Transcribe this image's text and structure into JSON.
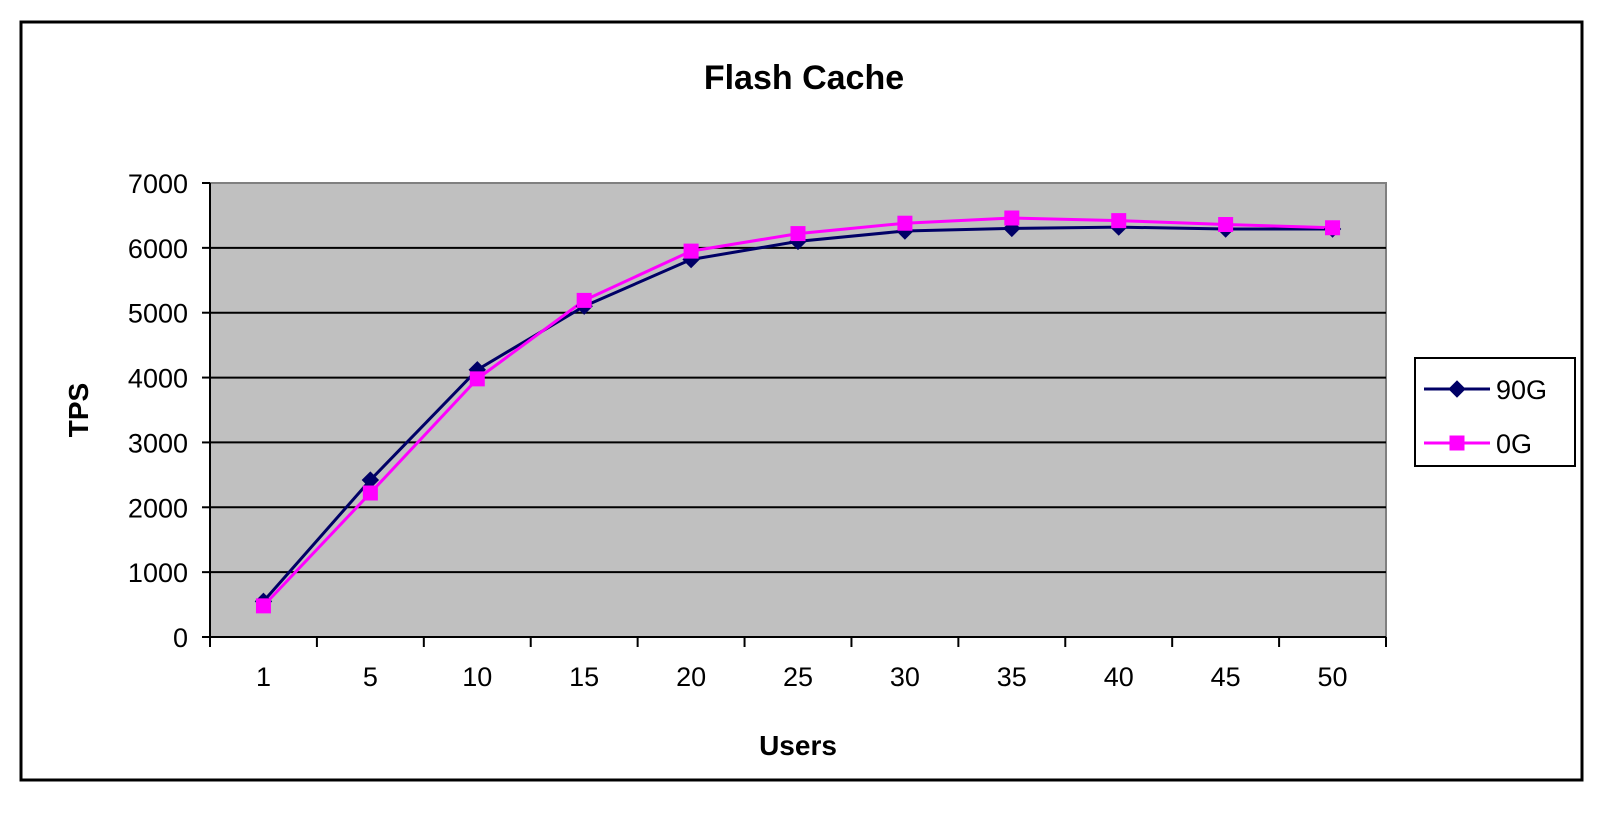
{
  "chart_data": {
    "type": "line",
    "title": "Flash Cache",
    "xlabel": "Users",
    "ylabel": "TPS",
    "categories": [
      "1",
      "5",
      "10",
      "15",
      "20",
      "25",
      "30",
      "35",
      "40",
      "45",
      "50"
    ],
    "ylim": [
      0,
      7000
    ],
    "yticks": [
      0,
      1000,
      2000,
      3000,
      4000,
      5000,
      6000,
      7000
    ],
    "grid": true,
    "legend_position": "right",
    "plot_background": "#C0C0C0",
    "series": [
      {
        "name": "90G",
        "color": "#000066",
        "marker": "diamond",
        "values": [
          550,
          2420,
          4120,
          5100,
          5820,
          6100,
          6260,
          6300,
          6320,
          6290,
          6290
        ]
      },
      {
        "name": "0G",
        "color": "#FF00FF",
        "marker": "square",
        "values": [
          480,
          2220,
          3980,
          5190,
          5950,
          6220,
          6380,
          6460,
          6420,
          6360,
          6310
        ]
      }
    ]
  }
}
